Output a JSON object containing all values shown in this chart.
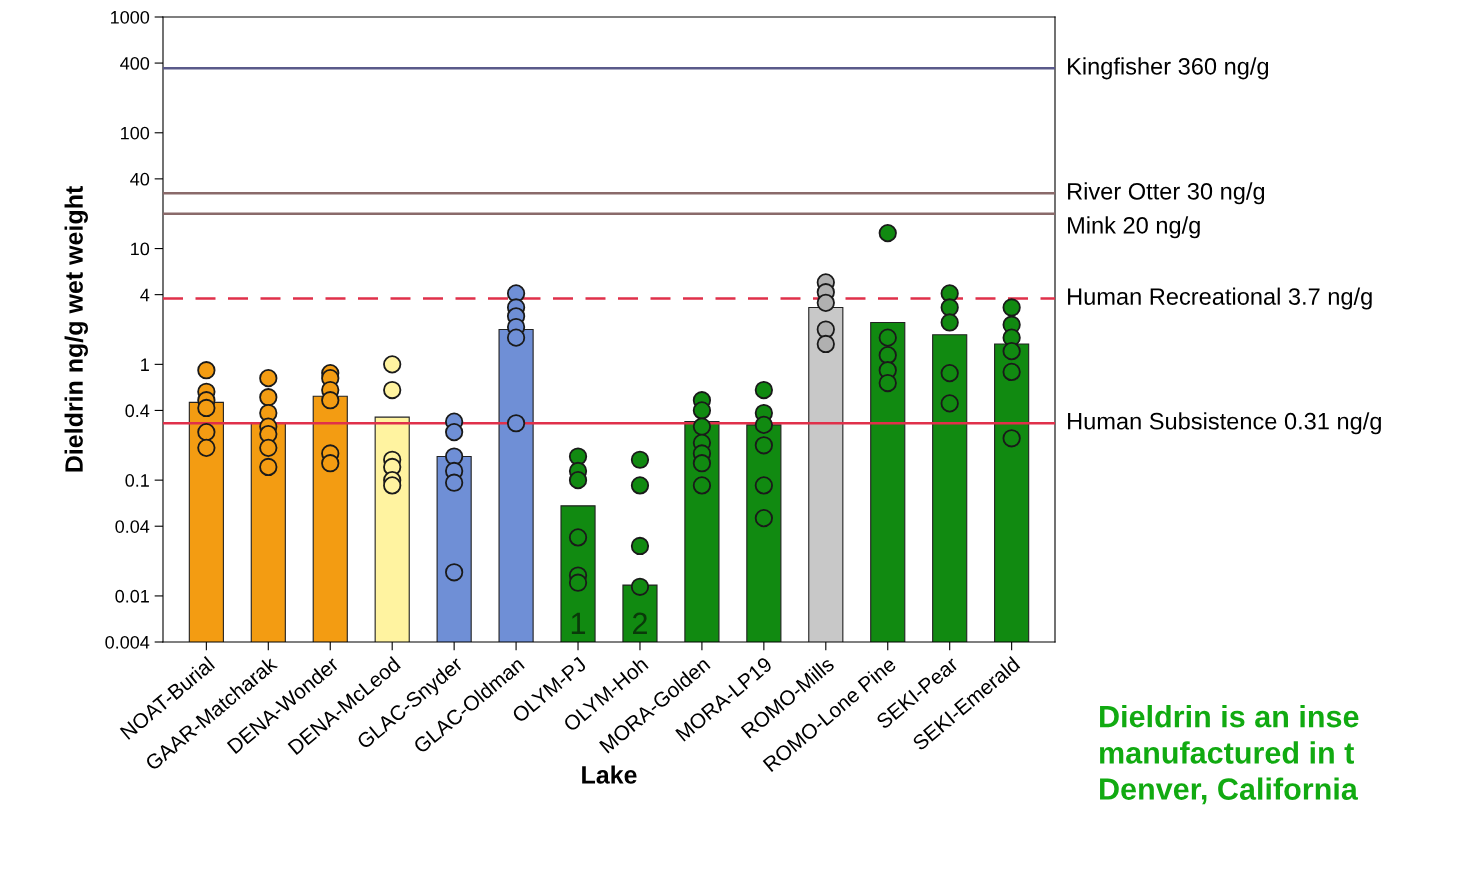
{
  "chart_data": {
    "type": "bar",
    "log": "y",
    "grid": false,
    "xlabel": "Lake",
    "ylabel": "Dieldrin ng/g wet weight",
    "categories": [
      "NOAT-Burial",
      "GAAR-Matcharak",
      "DENA-Wonder",
      "DENA-McLeod",
      "GLAC-Snyder",
      "GLAC-Oldman",
      "OLYM-PJ",
      "OLYM-Hoh",
      "MORA-Golden",
      "MORA-LP19",
      "ROMO-Mills",
      "ROMO-Lone Pine",
      "SEKI-Pear",
      "SEKI-Emerald"
    ],
    "ylim": [
      0.004,
      1000
    ],
    "yticks": [
      0.004,
      0.01,
      0.04,
      0.1,
      0.4,
      1,
      4,
      10,
      40,
      100,
      400,
      1000
    ],
    "series": [
      {
        "values": [
          0.47,
          0.31,
          0.53,
          0.35,
          0.16,
          2.0,
          0.06,
          0.0124,
          0.32,
          0.3,
          3.1,
          2.3,
          1.8,
          1.5
        ],
        "colors": [
          "#f39c12",
          "#f39c12",
          "#f39c12",
          "#fff3a0",
          "#6f8fd6",
          "#6f8fd6",
          "#118a11",
          "#118a11",
          "#118a11",
          "#118a11",
          "#c8c8c8",
          "#118a11",
          "#118a11",
          "#118a11"
        ]
      },
      {
        "type": "scatter",
        "marker": "circle",
        "x": [
          "NOAT-Burial",
          "NOAT-Burial",
          "NOAT-Burial",
          "NOAT-Burial",
          "NOAT-Burial",
          "NOAT-Burial",
          "GAAR-Matcharak",
          "GAAR-Matcharak",
          "GAAR-Matcharak",
          "GAAR-Matcharak",
          "GAAR-Matcharak",
          "GAAR-Matcharak",
          "GAAR-Matcharak",
          "DENA-Wonder",
          "DENA-Wonder",
          "DENA-Wonder",
          "DENA-Wonder",
          "DENA-Wonder",
          "DENA-Wonder",
          "DENA-McLeod",
          "DENA-McLeod",
          "DENA-McLeod",
          "DENA-McLeod",
          "DENA-McLeod",
          "DENA-McLeod",
          "GLAC-Snyder",
          "GLAC-Snyder",
          "GLAC-Snyder",
          "GLAC-Snyder",
          "GLAC-Snyder",
          "GLAC-Snyder",
          "GLAC-Oldman",
          "GLAC-Oldman",
          "GLAC-Oldman",
          "GLAC-Oldman",
          "GLAC-Oldman",
          "GLAC-Oldman",
          "OLYM-PJ",
          "OLYM-PJ",
          "OLYM-PJ",
          "OLYM-PJ",
          "OLYM-PJ",
          "OLYM-PJ",
          "OLYM-Hoh",
          "OLYM-Hoh",
          "OLYM-Hoh",
          "OLYM-Hoh",
          "MORA-Golden",
          "MORA-Golden",
          "MORA-Golden",
          "MORA-Golden",
          "MORA-Golden",
          "MORA-Golden",
          "MORA-Golden",
          "MORA-LP19",
          "MORA-LP19",
          "MORA-LP19",
          "MORA-LP19",
          "MORA-LP19",
          "MORA-LP19",
          "ROMO-Mills",
          "ROMO-Mills",
          "ROMO-Mills",
          "ROMO-Mills",
          "ROMO-Mills",
          "ROMO-Lone Pine",
          "ROMO-Lone Pine",
          "ROMO-Lone Pine",
          "ROMO-Lone Pine",
          "ROMO-Lone Pine",
          "SEKI-Pear",
          "SEKI-Pear",
          "SEKI-Pear",
          "SEKI-Pear",
          "SEKI-Pear",
          "SEKI-Emerald",
          "SEKI-Emerald",
          "SEKI-Emerald",
          "SEKI-Emerald",
          "SEKI-Emerald",
          "SEKI-Emerald"
        ],
        "values": [
          0.89,
          0.58,
          0.49,
          0.42,
          0.26,
          0.19,
          0.76,
          0.52,
          0.38,
          0.29,
          0.25,
          0.19,
          0.13,
          0.84,
          0.76,
          0.6,
          0.49,
          0.17,
          0.14,
          1.0,
          0.6,
          0.15,
          0.13,
          0.1,
          0.09,
          0.32,
          0.26,
          0.16,
          0.12,
          0.095,
          0.016,
          4.1,
          3.1,
          2.6,
          2.1,
          1.7,
          0.31,
          0.16,
          0.12,
          0.1,
          0.032,
          0.015,
          0.013,
          0.15,
          0.09,
          0.027,
          0.012,
          0.49,
          0.4,
          0.29,
          0.21,
          0.17,
          0.14,
          0.09,
          0.6,
          0.38,
          0.3,
          0.2,
          0.09,
          0.047,
          5.1,
          4.2,
          3.4,
          2.0,
          1.5,
          13.6,
          1.7,
          1.2,
          0.89,
          0.69,
          4.1,
          3.1,
          2.3,
          0.84,
          0.46,
          3.1,
          2.2,
          1.7,
          1.3,
          0.86,
          0.23
        ],
        "colors": [
          "#f39c12",
          "#f39c12",
          "#f39c12",
          "#f39c12",
          "#f39c12",
          "#f39c12",
          "#f39c12",
          "#f39c12",
          "#f39c12",
          "#f39c12",
          "#f39c12",
          "#f39c12",
          "#f39c12",
          "#f39c12",
          "#f39c12",
          "#f39c12",
          "#f39c12",
          "#f39c12",
          "#f39c12",
          "#fff3a0",
          "#fff3a0",
          "#fff3a0",
          "#fff3a0",
          "#fff3a0",
          "#fff3a0",
          "#6f8fd6",
          "#6f8fd6",
          "#6f8fd6",
          "#6f8fd6",
          "#6f8fd6",
          "#6f8fd6",
          "#6f8fd6",
          "#6f8fd6",
          "#6f8fd6",
          "#6f8fd6",
          "#6f8fd6",
          "#6f8fd6",
          "#118a11",
          "#118a11",
          "#118a11",
          "#118a11",
          "#118a11",
          "#118a11",
          "#118a11",
          "#118a11",
          "#118a11",
          "#118a11",
          "#118a11",
          "#118a11",
          "#118a11",
          "#118a11",
          "#118a11",
          "#118a11",
          "#118a11",
          "#118a11",
          "#118a11",
          "#118a11",
          "#118a11",
          "#118a11",
          "#118a11",
          "#b0b0b0",
          "#b0b0b0",
          "#b0b0b0",
          "#b0b0b0",
          "#b0b0b0",
          "#118a11",
          "#118a11",
          "#118a11",
          "#118a11",
          "#118a11",
          "#118a11",
          "#118a11",
          "#118a11",
          "#118a11",
          "#118a11",
          "#118a11",
          "#118a11",
          "#118a11",
          "#118a11",
          "#118a11",
          "#118a11"
        ]
      }
    ],
    "ref_lines": [
      {
        "axis": "y",
        "value": 360,
        "label": "Kingfisher 360 ng/g",
        "color": "#5a5a8a",
        "line_style": "solid"
      },
      {
        "axis": "y",
        "value": 30,
        "label": "River Otter 30 ng/g",
        "color": "#8a6a6a",
        "line_style": "solid"
      },
      {
        "axis": "y",
        "value": 20,
        "label": "Mink 20 ng/g",
        "color": "#8a6a6a",
        "line_style": "solid"
      },
      {
        "axis": "y",
        "value": 3.7,
        "label": "Human Recreational 3.7 ng/g",
        "color": "#e0304a",
        "line_style": "dashed"
      },
      {
        "axis": "y",
        "value": 0.31,
        "label": "Human Subsistence 0.31 ng/g",
        "color": "#e0304a",
        "line_style": "solid"
      }
    ],
    "annotations": [
      "1",
      "2",
      "Dieldrin is an inse\nmanufactured in t\nDenver, California"
    ]
  }
}
